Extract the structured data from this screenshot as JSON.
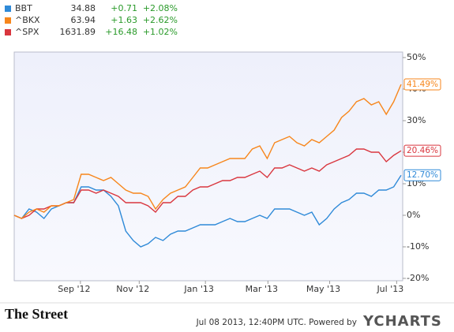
{
  "chart_data": {
    "type": "line",
    "series": [
      {
        "name": "BBT",
        "price": 34.88,
        "change": "+0.71",
        "change_pct": "+2.08%",
        "color": "#2f8ad8",
        "end_label": "12.70%",
        "values": [
          0,
          -1,
          2,
          1,
          -1,
          2,
          3,
          4,
          4,
          9,
          9,
          8,
          8,
          6,
          3,
          -5,
          -8,
          -10,
          -9,
          -7,
          -8,
          -6,
          -5,
          -5,
          -4,
          -3,
          -3,
          -3,
          -2,
          -1,
          -2,
          -2,
          -1,
          0,
          -1,
          2,
          2,
          2,
          1,
          0,
          1,
          -3,
          -1,
          2,
          4,
          5,
          7,
          7,
          6,
          8,
          8,
          9,
          12.7
        ]
      },
      {
        "name": "^BKX",
        "price": 63.94,
        "change": "+1.63",
        "change_pct": "+2.62%",
        "color": "#f7861b",
        "end_label": "41.49%",
        "values": [
          0,
          -1,
          1,
          2,
          1,
          3,
          3,
          4,
          5,
          13,
          13,
          12,
          11,
          12,
          10,
          8,
          7,
          7,
          6,
          2,
          5,
          7,
          8,
          9,
          12,
          15,
          15,
          16,
          17,
          18,
          18,
          18,
          21,
          22,
          18,
          23,
          24,
          25,
          23,
          22,
          24,
          23,
          25,
          27,
          31,
          33,
          36,
          37,
          35,
          36,
          32,
          36,
          41.49
        ]
      },
      {
        "name": "^SPX",
        "price": 1631.89,
        "change": "+16.48",
        "change_pct": "+1.02%",
        "color": "#d9363e",
        "end_label": "20.46%",
        "values": [
          0,
          -1,
          0,
          2,
          2,
          3,
          3,
          4,
          4,
          8,
          8,
          7,
          8,
          7,
          6,
          4,
          4,
          4,
          3,
          1,
          4,
          4,
          6,
          6,
          8,
          9,
          9,
          10,
          11,
          11,
          12,
          12,
          13,
          14,
          12,
          15,
          15,
          16,
          15,
          14,
          15,
          14,
          16,
          17,
          18,
          19,
          21,
          21,
          20,
          20,
          17,
          19,
          20.46
        ]
      }
    ],
    "xlim": [
      0,
      52
    ],
    "xticks": [
      {
        "value": 8.9,
        "label": "Sep '12"
      },
      {
        "value": 16.8,
        "label": "Nov '12"
      },
      {
        "value": 25.7,
        "label": "Jan '13"
      },
      {
        "value": 34.1,
        "label": "Mar '13"
      },
      {
        "value": 42.4,
        "label": "May '13"
      },
      {
        "value": 51.4,
        "label": "Jul '13"
      }
    ],
    "ylim": [
      -20,
      50
    ],
    "yticks": [
      {
        "value": -20,
        "label": "-20%"
      },
      {
        "value": -10,
        "label": "-10%"
      },
      {
        "value": 0,
        "label": "0%"
      },
      {
        "value": 10,
        "label": "10%"
      },
      {
        "value": 20,
        "label": "20%"
      },
      {
        "value": 30,
        "label": "30%"
      },
      {
        "value": 40,
        "label": "40%"
      },
      {
        "value": 50,
        "label": "50%"
      }
    ],
    "grid": false
  },
  "footer": {
    "brand": "The Street",
    "timestamp": "Jul 08 2013, 12:40PM UTC. Powered by",
    "provider": "YCHARTS"
  }
}
